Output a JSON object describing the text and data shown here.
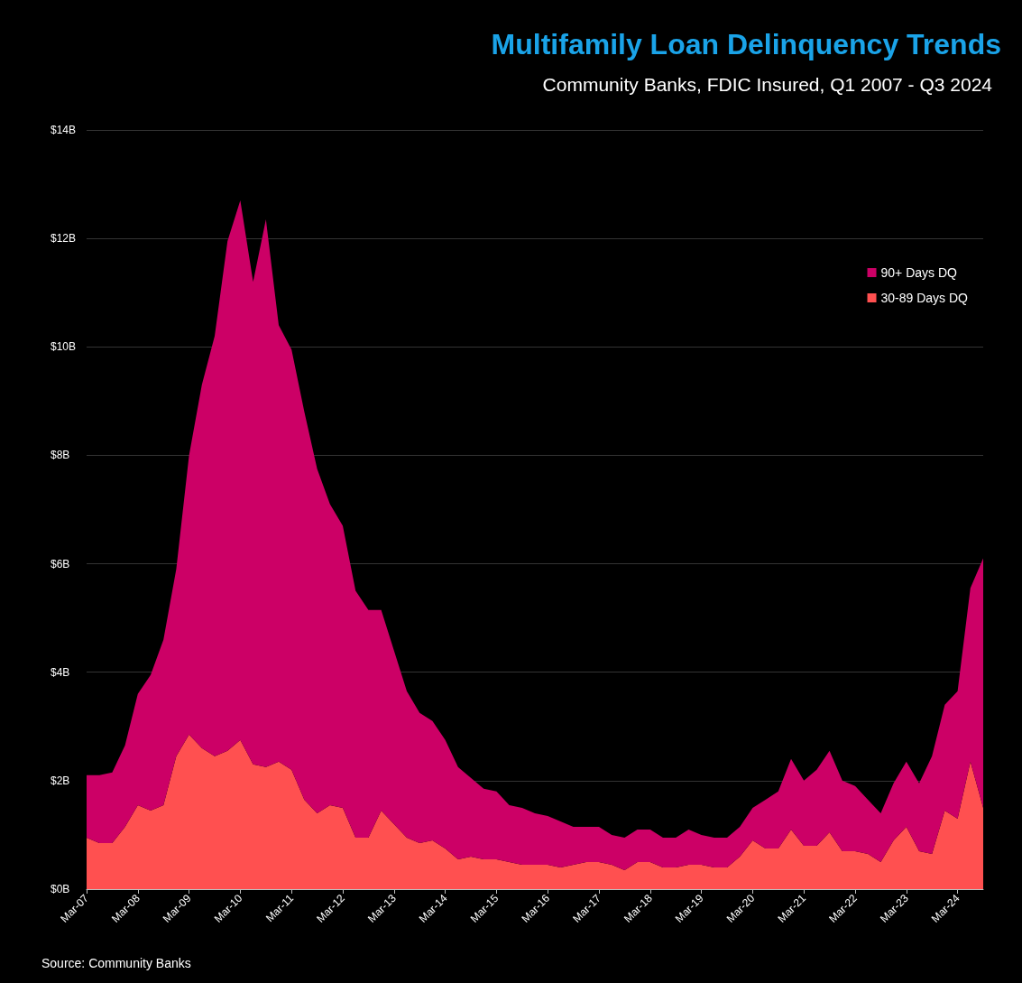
{
  "chart_data": {
    "type": "area",
    "title": "Multifamily Loan Delinquency Trends",
    "subtitle": "Community Banks, FDIC Insured, Q1 2007 - Q3 2024",
    "categories": [
      "Mar-07",
      null,
      null,
      null,
      "Mar-08",
      null,
      null,
      null,
      "Mar-09",
      null,
      null,
      null,
      "Mar-10",
      null,
      null,
      null,
      "Mar-11",
      null,
      null,
      null,
      "Mar-12",
      null,
      null,
      null,
      "Mar-13",
      null,
      null,
      null,
      "Mar-14",
      null,
      null,
      null,
      "Mar-15",
      null,
      null,
      null,
      "Mar-16",
      null,
      null,
      null,
      "Mar-17",
      null,
      null,
      null,
      "Mar-18",
      null,
      null,
      null,
      "Mar-19",
      null,
      null,
      null,
      "Mar-20",
      null,
      null,
      null,
      "Mar-21",
      null,
      null,
      null,
      "Mar-22",
      null,
      null,
      null,
      "Mar-23",
      null,
      null,
      null,
      "Mar-24",
      null,
      null
    ],
    "series": [
      {
        "name": "30-89 Days DQ",
        "color": "#ff5050",
        "values": [
          0.95,
          0.85,
          0.85,
          1.15,
          1.55,
          1.45,
          1.55,
          2.45,
          2.85,
          2.6,
          2.45,
          2.55,
          2.75,
          2.3,
          2.25,
          2.35,
          2.2,
          1.65,
          1.4,
          1.55,
          1.5,
          0.95,
          0.95,
          1.45,
          1.2,
          0.95,
          0.85,
          0.9,
          0.75,
          0.55,
          0.6,
          0.55,
          0.55,
          0.5,
          0.45,
          0.45,
          0.45,
          0.4,
          0.45,
          0.5,
          0.5,
          0.45,
          0.35,
          0.5,
          0.5,
          0.4,
          0.4,
          0.45,
          0.45,
          0.4,
          0.4,
          0.6,
          0.9,
          0.75,
          0.75,
          1.1,
          0.8,
          0.8,
          1.05,
          0.7,
          0.7,
          0.65,
          0.5,
          0.9,
          1.15,
          0.7,
          0.65,
          1.45,
          1.3,
          2.35,
          1.5
        ]
      },
      {
        "name": "90+ Days DQ",
        "color": "#cc0066",
        "values": [
          1.15,
          1.25,
          1.3,
          1.5,
          2.05,
          2.5,
          3.05,
          3.45,
          5.15,
          6.7,
          7.75,
          9.4,
          9.95,
          8.9,
          10.1,
          8.05,
          7.75,
          7.15,
          6.35,
          5.55,
          5.2,
          4.55,
          4.2,
          3.7,
          3.2,
          2.7,
          2.4,
          2.2,
          2.0,
          1.7,
          1.45,
          1.3,
          1.25,
          1.05,
          1.05,
          0.95,
          0.9,
          0.85,
          0.7,
          0.65,
          0.65,
          0.55,
          0.6,
          0.6,
          0.6,
          0.55,
          0.55,
          0.65,
          0.55,
          0.55,
          0.55,
          0.55,
          0.6,
          0.9,
          1.05,
          1.3,
          1.2,
          1.4,
          1.5,
          1.3,
          1.2,
          1.0,
          0.9,
          1.05,
          1.2,
          1.25,
          1.8,
          1.95,
          2.35,
          3.2,
          4.6
        ]
      }
    ],
    "stacked": true,
    "ylim": [
      0,
      14
    ],
    "yticks": [
      {
        "value": 0,
        "label": "$0B"
      },
      {
        "value": 2,
        "label": "$2B"
      },
      {
        "value": 4,
        "label": "$4B"
      },
      {
        "value": 6,
        "label": "$6B"
      },
      {
        "value": 8,
        "label": "$8B"
      },
      {
        "value": 10,
        "label": "$10B"
      },
      {
        "value": 12,
        "label": "$12B"
      },
      {
        "value": 14,
        "label": "$14B"
      }
    ],
    "grid": "y",
    "legend": "top right",
    "marker": "none",
    "annotations": [
      "Source: Community Banks"
    ]
  }
}
